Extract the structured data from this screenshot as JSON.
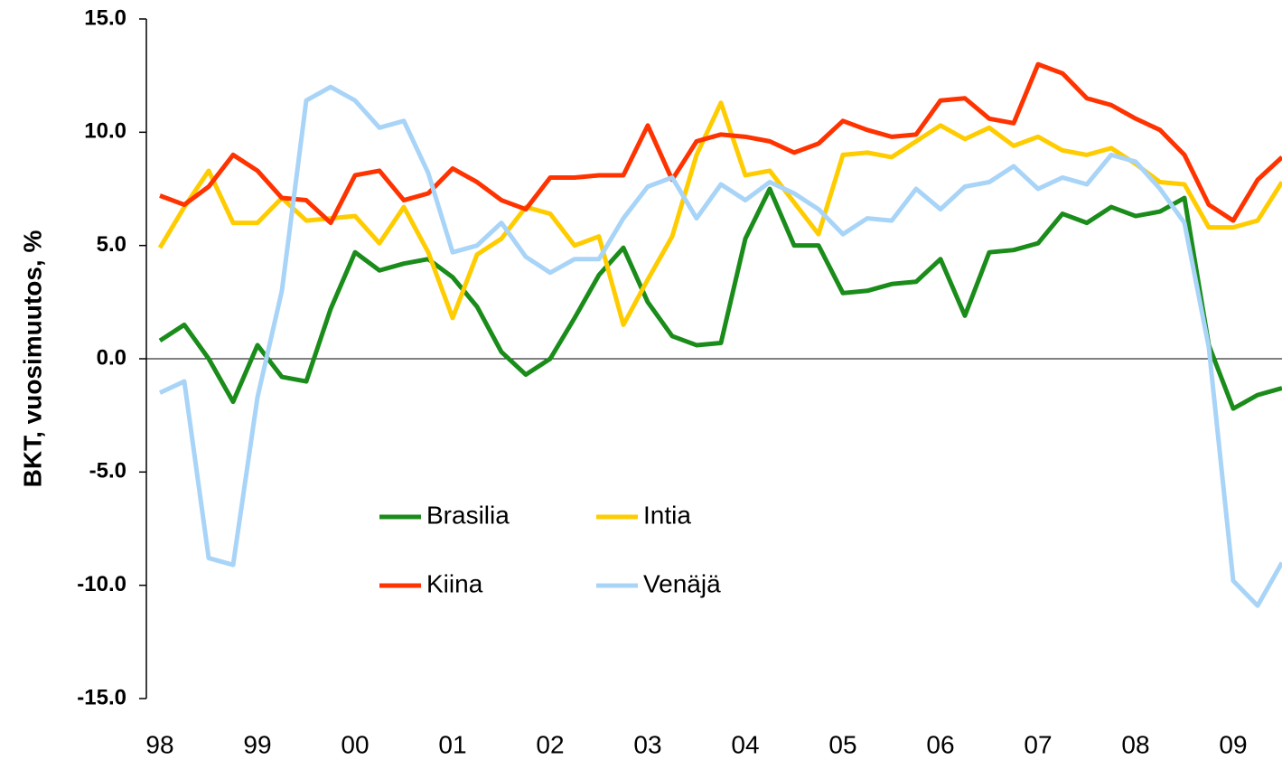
{
  "chart_data": {
    "type": "line",
    "ylabel": "BKT, vuosimuutos, %",
    "ylim": [
      -15,
      15
    ],
    "yticks": [
      {
        "value": -15,
        "label": "-15.0"
      },
      {
        "value": -10,
        "label": "-10.0"
      },
      {
        "value": -5,
        "label": "-5.0"
      },
      {
        "value": 0,
        "label": "0.0"
      },
      {
        "value": 5,
        "label": "5.0"
      },
      {
        "value": 10,
        "label": "10.0"
      },
      {
        "value": 15,
        "label": "15.0"
      }
    ],
    "categories": [
      "98",
      null,
      null,
      null,
      "99",
      null,
      null,
      null,
      "00",
      null,
      null,
      null,
      "01",
      null,
      null,
      null,
      "02",
      null,
      null,
      null,
      "03",
      null,
      null,
      null,
      "04",
      null,
      null,
      null,
      "05",
      null,
      null,
      null,
      "06",
      null,
      null,
      null,
      "07",
      null,
      null,
      null,
      "08",
      null,
      null,
      null,
      "09",
      null,
      null
    ],
    "series": [
      {
        "name": "Brasilia",
        "color": "#1a8c1a",
        "values": [
          0.8,
          1.5,
          0.0,
          -1.9,
          0.6,
          -0.8,
          -1.0,
          2.2,
          4.7,
          3.9,
          4.2,
          4.4,
          3.6,
          2.3,
          0.3,
          -0.7,
          0.0,
          1.8,
          3.7,
          4.9,
          2.5,
          1.0,
          0.6,
          0.7,
          5.3,
          7.5,
          5.0,
          5.0,
          2.9,
          3.0,
          3.3,
          3.4,
          4.4,
          1.9,
          4.7,
          4.8,
          5.1,
          6.4,
          6.0,
          6.7,
          6.3,
          6.5,
          7.1,
          0.6,
          -2.2,
          -1.6,
          -1.3
        ]
      },
      {
        "name": "Intia",
        "color": "#ffcc00",
        "values": [
          4.9,
          6.7,
          8.3,
          6.0,
          6.0,
          7.1,
          6.1,
          6.2,
          6.3,
          5.1,
          6.7,
          4.7,
          1.8,
          4.6,
          5.3,
          6.7,
          6.4,
          5.0,
          5.4,
          1.5,
          3.5,
          5.4,
          9.0,
          11.3,
          8.1,
          8.3,
          6.9,
          5.5,
          9.0,
          9.1,
          8.9,
          9.6,
          10.3,
          9.7,
          10.2,
          9.4,
          9.8,
          9.2,
          9.0,
          9.3,
          8.6,
          7.8,
          7.7,
          5.8,
          5.8,
          6.1,
          7.8
        ]
      },
      {
        "name": "Kiina",
        "color": "#ff3300",
        "values": [
          7.2,
          6.8,
          7.6,
          9.0,
          8.3,
          7.1,
          7.0,
          6.0,
          8.1,
          8.3,
          7.0,
          7.3,
          8.4,
          7.8,
          7.0,
          6.6,
          8.0,
          8.0,
          8.1,
          8.1,
          10.3,
          7.9,
          9.6,
          9.9,
          9.8,
          9.6,
          9.1,
          9.5,
          10.5,
          10.1,
          9.8,
          9.9,
          11.4,
          11.5,
          10.6,
          10.4,
          13.0,
          12.6,
          11.5,
          11.2,
          10.6,
          10.1,
          9.0,
          6.8,
          6.1,
          7.9,
          8.9
        ]
      },
      {
        "name": "Venäjä",
        "color": "#a8d4f8",
        "values": [
          -1.5,
          -1.0,
          -8.8,
          -9.1,
          -1.7,
          3.0,
          11.4,
          12.0,
          11.4,
          10.2,
          10.5,
          8.2,
          4.7,
          5.0,
          6.0,
          4.5,
          3.8,
          4.4,
          4.4,
          6.2,
          7.6,
          8.0,
          6.2,
          7.7,
          7.0,
          7.8,
          7.3,
          6.6,
          5.5,
          6.2,
          6.1,
          7.5,
          6.6,
          7.6,
          7.8,
          8.5,
          7.5,
          8.0,
          7.7,
          9.0,
          8.7,
          7.5,
          6.0,
          0.5,
          -9.8,
          -10.9,
          -9.0
        ]
      }
    ]
  }
}
